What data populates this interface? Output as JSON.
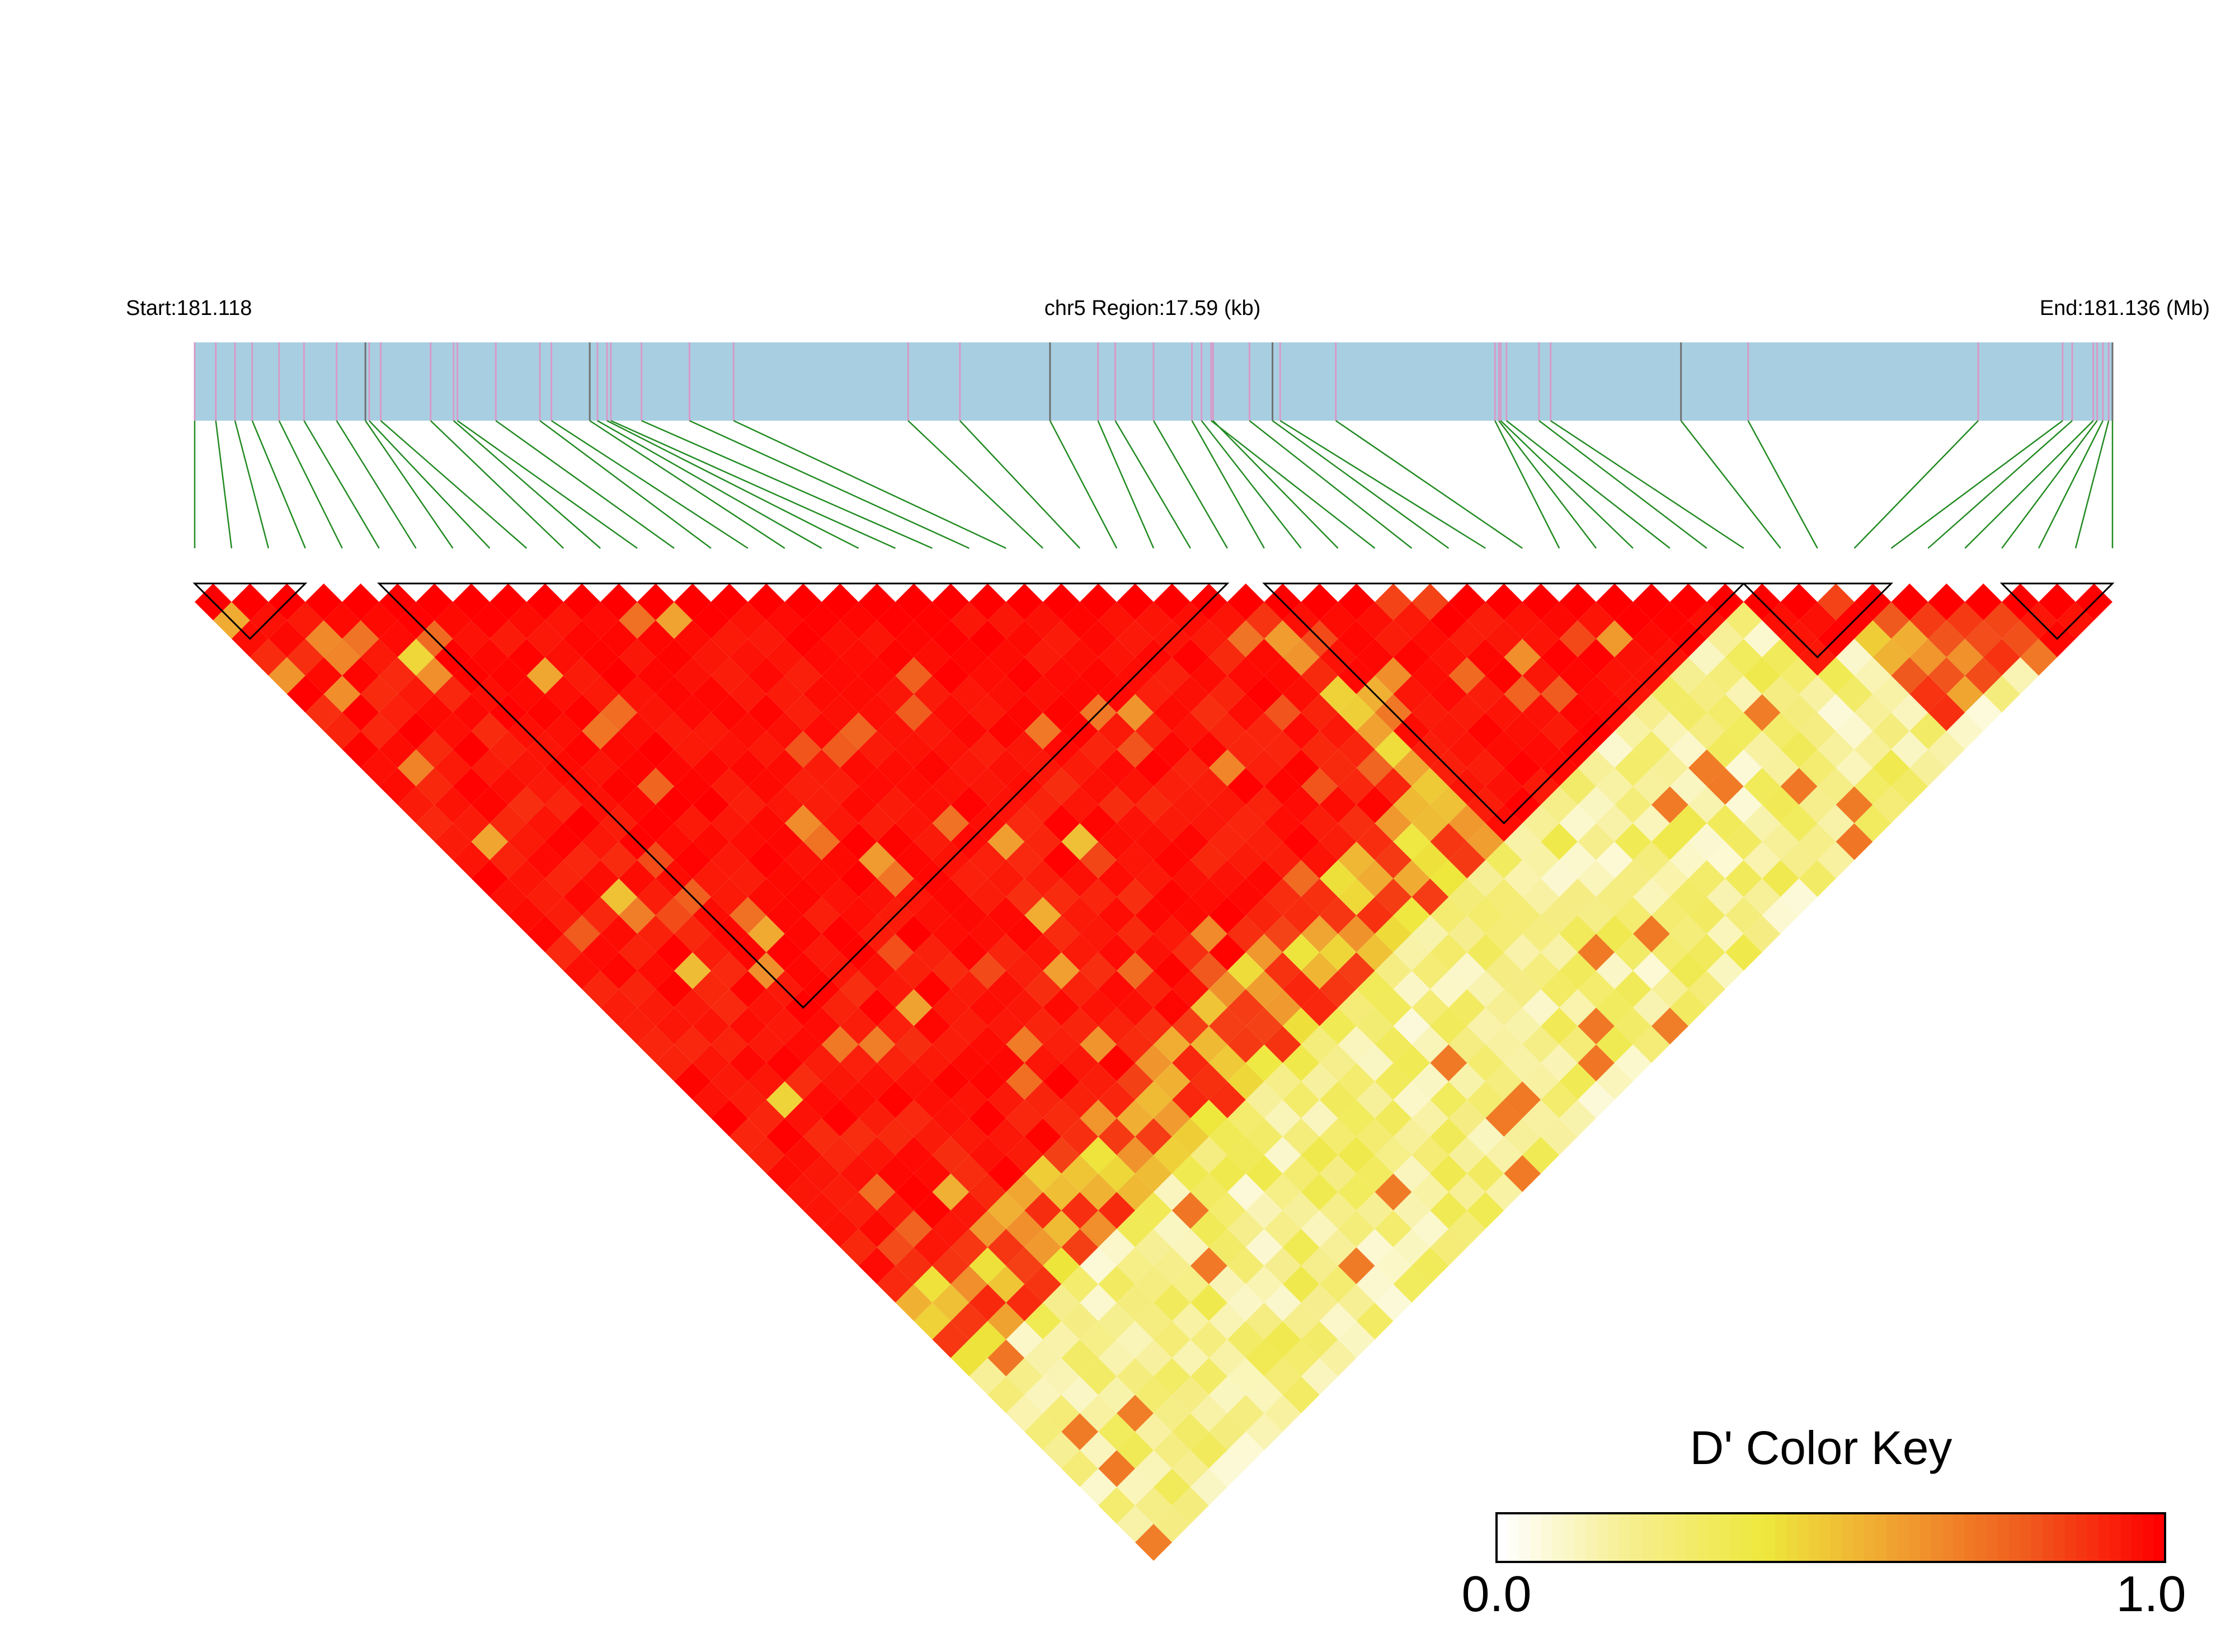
{
  "labels": {
    "start": "Start:181.118",
    "region": "chr5 Region:17.59 (kb)",
    "end": "End:181.136 (Mb)"
  },
  "colorkey": {
    "title": "D' Color Key",
    "min_label": "0.0",
    "max_label": "1.0",
    "stops": [
      "#ffffff",
      "#f6ee8c",
      "#eee83c",
      "#f0a030",
      "#f05a1e",
      "#ff0000"
    ]
  },
  "colors": {
    "track_fill": "#a8cfe1",
    "snp_tick": "#d79ac8",
    "snp_tick_alt": "#707070",
    "connector": "#228b22",
    "block_outline": "#000000"
  },
  "chart_data": {
    "type": "heatmap",
    "title": "",
    "chromosome": "chr5",
    "region_start_mb": 181.118,
    "region_end_mb": 181.136,
    "region_length_kb": 17.59,
    "snp_count": 53,
    "snp_positions_fraction": [
      0.0,
      0.011,
      0.021,
      0.03,
      0.044,
      0.057,
      0.074,
      0.089,
      0.091,
      0.097,
      0.123,
      0.135,
      0.137,
      0.157,
      0.18,
      0.186,
      0.206,
      0.21,
      0.215,
      0.217,
      0.233,
      0.258,
      0.281,
      0.372,
      0.399,
      0.446,
      0.471,
      0.48,
      0.5,
      0.52,
      0.525,
      0.531,
      0.53,
      0.55,
      0.562,
      0.566,
      0.595,
      0.678,
      0.68,
      0.681,
      0.684,
      0.701,
      0.707,
      0.775,
      0.81,
      0.93,
      0.974,
      0.979,
      0.99,
      0.992,
      0.995,
      0.998,
      1.0
    ],
    "haplotype_blocks": [
      [
        0,
        3
      ],
      [
        5,
        28
      ],
      [
        29,
        42
      ],
      [
        42,
        46
      ],
      [
        49,
        52
      ]
    ],
    "value_label": "D'",
    "value_range": [
      0.0,
      1.0
    ],
    "legend_position": "bottom-right"
  }
}
